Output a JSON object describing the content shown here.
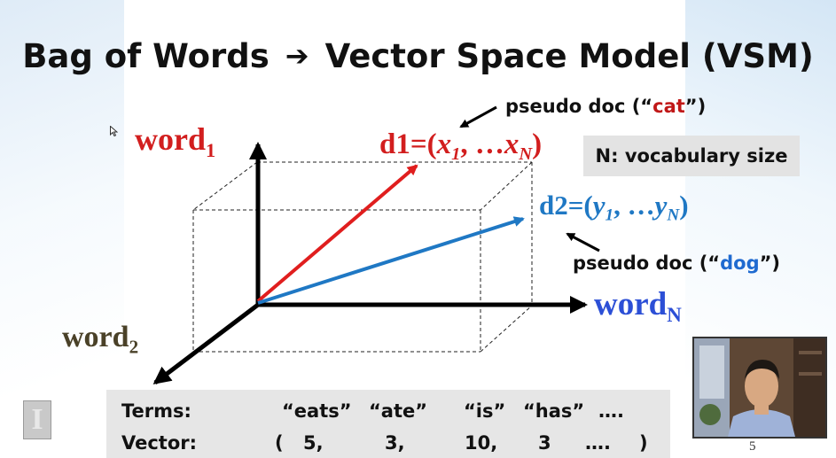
{
  "slide": {
    "title_left": "Bag of Words",
    "title_arrow": "➔",
    "title_right": "Vector Space Model (VSM)",
    "page_number": "5"
  },
  "axes": {
    "word1": {
      "base": "word",
      "sub": "1",
      "color": "#d21e1e"
    },
    "word2": {
      "base": "word",
      "sub": "2",
      "color": "#4a4128"
    },
    "wordN": {
      "base": "word",
      "sub": "N",
      "color": "#2c4fd6"
    }
  },
  "vectors": {
    "d1": {
      "prefix": "d1=(",
      "a": "x",
      "a_sub": "1",
      "mid": ", …",
      "b": "x",
      "b_sub": "N",
      "suffix": ")",
      "color": "#d21e1e"
    },
    "d2": {
      "prefix": "d2=(",
      "a": "y",
      "a_sub": "1",
      "mid": ", …",
      "b": "y",
      "b_sub": "N",
      "suffix": ")",
      "color": "#1f78c4"
    }
  },
  "annotations": {
    "cat": {
      "pre": "pseudo doc (“",
      "word": "cat",
      "post": "”)",
      "color": "#c01818"
    },
    "dog": {
      "pre": "pseudo doc (“",
      "word": "dog",
      "post": "”)",
      "color": "#1f6ad0"
    },
    "vocab": "N: vocabulary size"
  },
  "table": {
    "terms_label": "Terms:",
    "vector_label": "Vector:",
    "terms": [
      "“eats”",
      "“ate”",
      "“is”",
      "“has”",
      "…."
    ],
    "open_paren": "(",
    "values": [
      "5,",
      "3,",
      "10,",
      "3",
      "…."
    ],
    "close_paren": ")"
  },
  "logo_glyph": "I",
  "icons": {
    "cursor": "mouse-pointer-icon",
    "presenter": "presenter-video-feed"
  }
}
